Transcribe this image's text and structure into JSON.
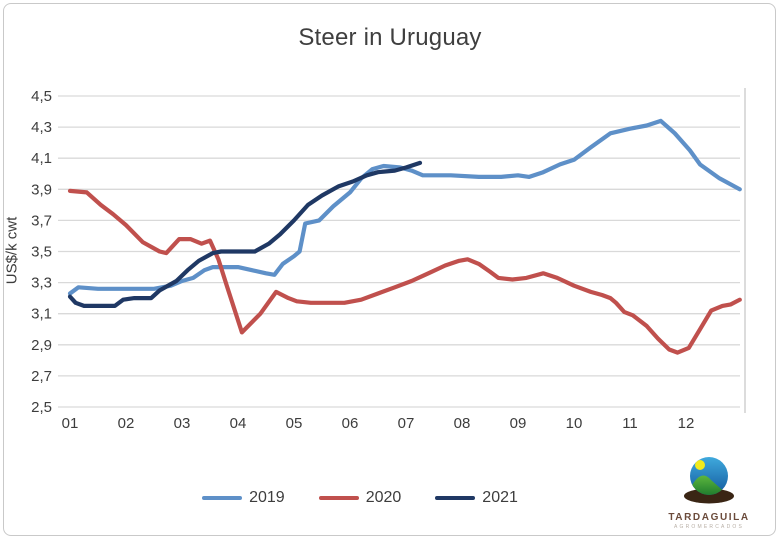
{
  "title": "Steer in Uruguay",
  "y_axis_label": "US$/k cwt",
  "logo": {
    "name": "TARDAGUILA",
    "subtext": "AGROMERCADOS"
  },
  "colors": {
    "gridline": "#d9d9d9",
    "plot_border": "#c9c9c9",
    "text": "#3d3d3d"
  },
  "chart_data": {
    "type": "line",
    "title": "Steer in Uruguay",
    "xlabel": "",
    "ylabel": "US$/k cwt",
    "x_ticks": [
      "01",
      "02",
      "03",
      "04",
      "05",
      "06",
      "07",
      "08",
      "09",
      "10",
      "11",
      "12"
    ],
    "y_ticks": [
      "4,5",
      "4,3",
      "4,1",
      "3,9",
      "3,7",
      "3,5",
      "3,3",
      "3,1",
      "2,9",
      "2,7",
      "2,5"
    ],
    "y_tick_values": [
      4.5,
      4.3,
      4.1,
      3.9,
      3.7,
      3.5,
      3.3,
      3.1,
      2.9,
      2.7,
      2.5
    ],
    "ylim": [
      2.5,
      4.5
    ],
    "xlim": [
      1,
      13
    ],
    "grid": "horizontal",
    "decimal_separator": ",",
    "legend_position": "bottom",
    "series": [
      {
        "name": "2019",
        "color": "#5e90c8",
        "points": [
          [
            1.0,
            3.23
          ],
          [
            1.15,
            3.27
          ],
          [
            1.5,
            3.26
          ],
          [
            2.0,
            3.26
          ],
          [
            2.5,
            3.26
          ],
          [
            2.8,
            3.28
          ],
          [
            3.0,
            3.31
          ],
          [
            3.2,
            3.33
          ],
          [
            3.4,
            3.38
          ],
          [
            3.55,
            3.4
          ],
          [
            4.0,
            3.4
          ],
          [
            4.25,
            3.38
          ],
          [
            4.5,
            3.36
          ],
          [
            4.65,
            3.35
          ],
          [
            4.8,
            3.42
          ],
          [
            5.0,
            3.47
          ],
          [
            5.1,
            3.5
          ],
          [
            5.2,
            3.68
          ],
          [
            5.45,
            3.7
          ],
          [
            5.7,
            3.79
          ],
          [
            6.0,
            3.88
          ],
          [
            6.2,
            3.97
          ],
          [
            6.4,
            4.03
          ],
          [
            6.6,
            4.05
          ],
          [
            6.9,
            4.04
          ],
          [
            7.1,
            4.02
          ],
          [
            7.3,
            3.99
          ],
          [
            7.8,
            3.99
          ],
          [
            8.3,
            3.98
          ],
          [
            8.7,
            3.98
          ],
          [
            9.0,
            3.99
          ],
          [
            9.2,
            3.98
          ],
          [
            9.45,
            4.01
          ],
          [
            9.75,
            4.06
          ],
          [
            10.0,
            4.09
          ],
          [
            10.3,
            4.17
          ],
          [
            10.65,
            4.26
          ],
          [
            11.0,
            4.29
          ],
          [
            11.3,
            4.31
          ],
          [
            11.55,
            4.34
          ],
          [
            11.8,
            4.26
          ],
          [
            12.07,
            4.15
          ],
          [
            12.25,
            4.06
          ],
          [
            12.6,
            3.97
          ],
          [
            12.96,
            3.9
          ]
        ]
      },
      {
        "name": "2020",
        "color": "#c0504d",
        "points": [
          [
            1.0,
            3.89
          ],
          [
            1.3,
            3.88
          ],
          [
            1.55,
            3.8
          ],
          [
            1.77,
            3.74
          ],
          [
            2.0,
            3.67
          ],
          [
            2.3,
            3.56
          ],
          [
            2.6,
            3.5
          ],
          [
            2.72,
            3.49
          ],
          [
            2.95,
            3.58
          ],
          [
            3.15,
            3.58
          ],
          [
            3.35,
            3.55
          ],
          [
            3.5,
            3.57
          ],
          [
            3.65,
            3.45
          ],
          [
            3.8,
            3.28
          ],
          [
            4.07,
            2.98
          ],
          [
            4.4,
            3.1
          ],
          [
            4.68,
            3.24
          ],
          [
            4.9,
            3.2
          ],
          [
            5.05,
            3.18
          ],
          [
            5.3,
            3.17
          ],
          [
            5.6,
            3.17
          ],
          [
            5.9,
            3.17
          ],
          [
            6.2,
            3.19
          ],
          [
            6.5,
            3.23
          ],
          [
            6.8,
            3.27
          ],
          [
            7.1,
            3.31
          ],
          [
            7.4,
            3.36
          ],
          [
            7.7,
            3.41
          ],
          [
            7.95,
            3.44
          ],
          [
            8.1,
            3.45
          ],
          [
            8.3,
            3.42
          ],
          [
            8.5,
            3.37
          ],
          [
            8.65,
            3.33
          ],
          [
            8.9,
            3.32
          ],
          [
            9.15,
            3.33
          ],
          [
            9.45,
            3.36
          ],
          [
            9.7,
            3.33
          ],
          [
            10.0,
            3.28
          ],
          [
            10.3,
            3.24
          ],
          [
            10.5,
            3.22
          ],
          [
            10.65,
            3.2
          ],
          [
            10.75,
            3.17
          ],
          [
            10.9,
            3.11
          ],
          [
            11.05,
            3.09
          ],
          [
            11.3,
            3.02
          ],
          [
            11.5,
            2.94
          ],
          [
            11.7,
            2.87
          ],
          [
            11.85,
            2.85
          ],
          [
            12.05,
            2.88
          ],
          [
            12.25,
            3.0
          ],
          [
            12.45,
            3.12
          ],
          [
            12.65,
            3.15
          ],
          [
            12.8,
            3.16
          ],
          [
            12.96,
            3.19
          ]
        ]
      },
      {
        "name": "2021",
        "color": "#1f3864",
        "points": [
          [
            1.0,
            3.21
          ],
          [
            1.1,
            3.17
          ],
          [
            1.25,
            3.15
          ],
          [
            1.8,
            3.15
          ],
          [
            1.95,
            3.19
          ],
          [
            2.15,
            3.2
          ],
          [
            2.45,
            3.2
          ],
          [
            2.6,
            3.25
          ],
          [
            2.9,
            3.31
          ],
          [
            3.1,
            3.38
          ],
          [
            3.3,
            3.44
          ],
          [
            3.55,
            3.49
          ],
          [
            3.7,
            3.5
          ],
          [
            4.3,
            3.5
          ],
          [
            4.55,
            3.55
          ],
          [
            4.75,
            3.61
          ],
          [
            5.0,
            3.7
          ],
          [
            5.25,
            3.8
          ],
          [
            5.5,
            3.86
          ],
          [
            5.8,
            3.92
          ],
          [
            6.05,
            3.95
          ],
          [
            6.3,
            3.99
          ],
          [
            6.5,
            4.01
          ],
          [
            6.8,
            4.02
          ],
          [
            7.0,
            4.04
          ],
          [
            7.25,
            4.07
          ]
        ]
      }
    ]
  }
}
